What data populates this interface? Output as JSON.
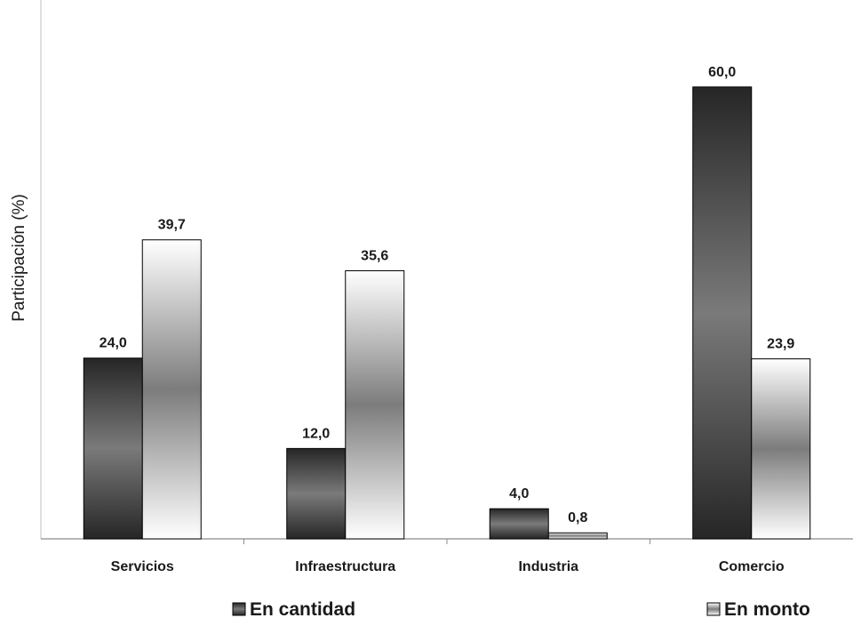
{
  "chart_data": {
    "type": "bar",
    "title": "",
    "xlabel": "",
    "ylabel": "Participación (%)",
    "categories": [
      "Servicios",
      "Infraestructura",
      "Industria",
      "Comercio"
    ],
    "series": [
      {
        "name": "En cantidad",
        "values": [
          24.0,
          12.0,
          4.0,
          60.0
        ],
        "labels": [
          "24,0",
          "12,0",
          "4,0",
          "60,0"
        ],
        "color": "#3a3a3a"
      },
      {
        "name": "En monto",
        "values": [
          39.7,
          35.6,
          0.8,
          23.9
        ],
        "labels": [
          "39,7",
          "35,6",
          "0,8",
          "23,9"
        ],
        "color": "#f2f2f2"
      }
    ],
    "ylim": [
      0,
      70
    ],
    "grid": false,
    "legend_position": "bottom",
    "y_ticks_shown": false
  }
}
